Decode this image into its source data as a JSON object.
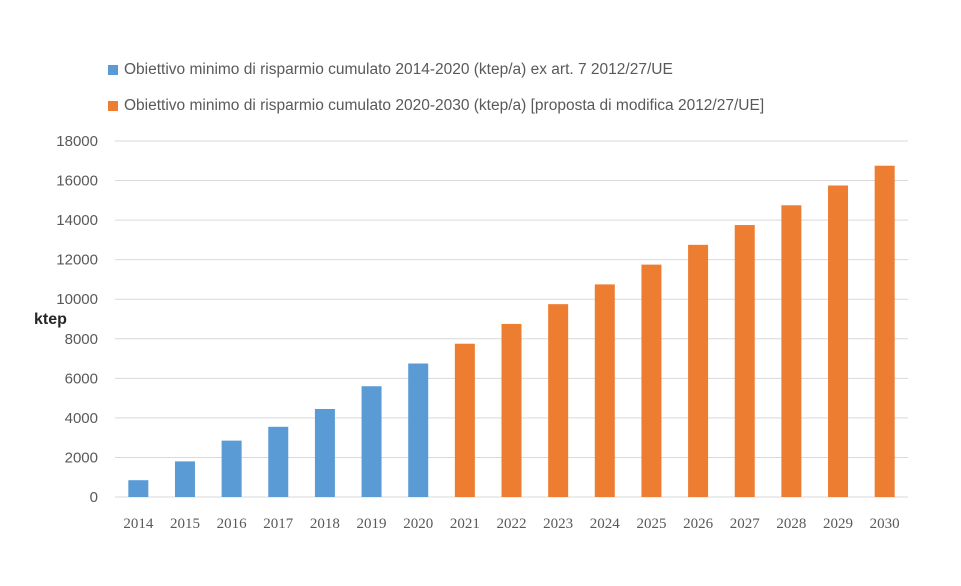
{
  "chart_data": {
    "type": "bar",
    "ylabel": "ktep",
    "ylim": [
      0,
      18000
    ],
    "yticks": [
      "0",
      "2000",
      "4000",
      "6000",
      "8000",
      "10000",
      "12000",
      "14000",
      "16000",
      "18000"
    ],
    "grid": true,
    "legend_position": "top-left",
    "categories": [
      "2014",
      "2015",
      "2016",
      "2017",
      "2018",
      "2019",
      "2020",
      "2021",
      "2022",
      "2023",
      "2024",
      "2025",
      "2026",
      "2027",
      "2028",
      "2029",
      "2030"
    ],
    "series": [
      {
        "name": "Obiettivo minimo di risparmio cumulato 2014-2020 (ktep/a) ex art. 7 2012/27/UE",
        "color": "#5B9BD5",
        "values": [
          850,
          1800,
          2850,
          3550,
          4450,
          5600,
          6750,
          null,
          null,
          null,
          null,
          null,
          null,
          null,
          null,
          null,
          null
        ]
      },
      {
        "name": "Obiettivo minimo di risparmio cumulato 2020-2030 (ktep/a) [proposta di modifica 2012/27/UE]",
        "color": "#ED7D31",
        "values": [
          null,
          null,
          null,
          null,
          null,
          null,
          null,
          7750,
          8750,
          9750,
          10750,
          11750,
          12750,
          13750,
          14750,
          15750,
          16750
        ]
      }
    ]
  }
}
